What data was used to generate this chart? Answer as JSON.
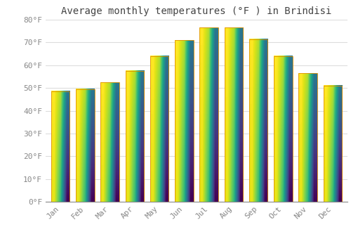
{
  "title": "Average monthly temperatures (°F ) in Brindisi",
  "months": [
    "Jan",
    "Feb",
    "Mar",
    "Apr",
    "May",
    "Jun",
    "Jul",
    "Aug",
    "Sep",
    "Oct",
    "Nov",
    "Dec"
  ],
  "values": [
    48.5,
    49.5,
    52.5,
    57.5,
    64,
    71,
    76.5,
    76.5,
    71.5,
    64,
    56.5,
    51
  ],
  "bar_color_top": "#FFCC44",
  "bar_color_bottom": "#F5A800",
  "bar_edge_color": "#E09000",
  "background_color": "#FFFFFF",
  "grid_color": "#DDDDDD",
  "text_color": "#888888",
  "title_color": "#444444",
  "ylim": [
    0,
    80
  ],
  "yticks": [
    0,
    10,
    20,
    30,
    40,
    50,
    60,
    70,
    80
  ],
  "ytick_labels": [
    "0°F",
    "10°F",
    "20°F",
    "30°F",
    "40°F",
    "50°F",
    "60°F",
    "70°F",
    "80°F"
  ],
  "title_fontsize": 10,
  "tick_fontsize": 8,
  "font_family": "monospace",
  "bar_width": 0.75
}
